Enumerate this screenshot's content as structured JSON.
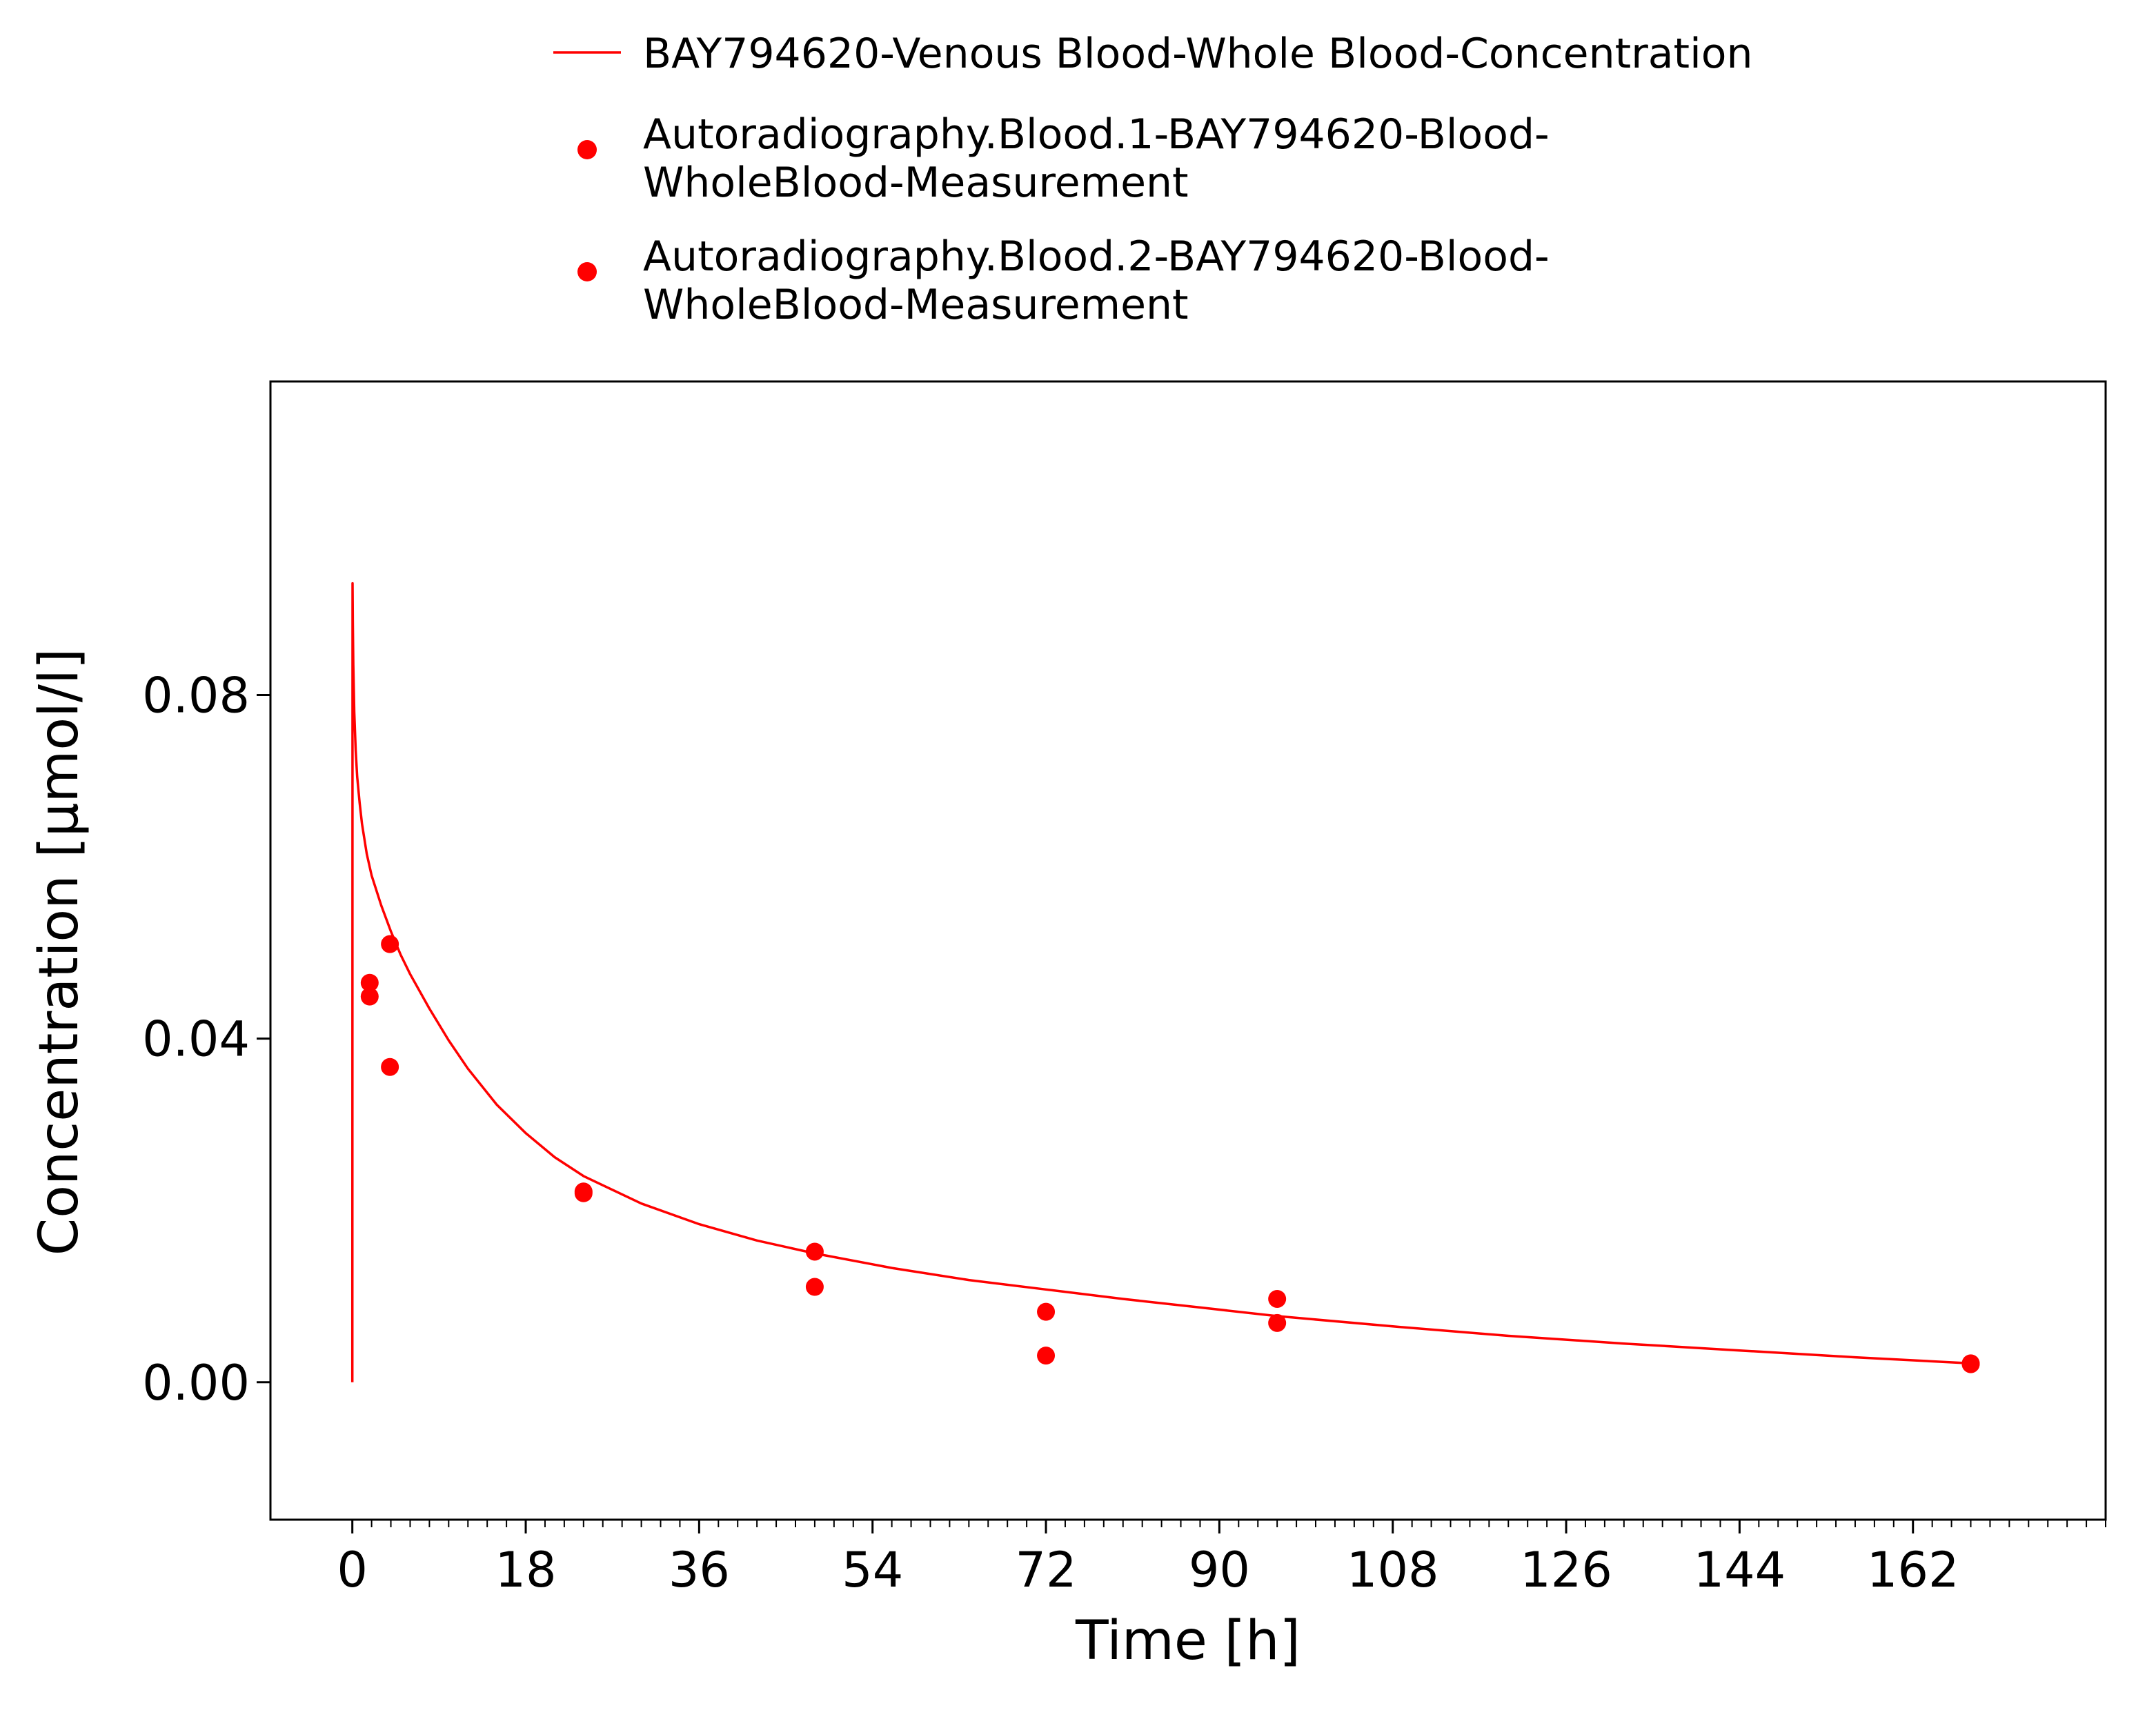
{
  "chart_data": {
    "type": "line",
    "title": "",
    "xlabel": "Time [h]",
    "ylabel": "Concentration [µmol/l]",
    "xlim": [
      -8.5,
      182
    ],
    "ylim": [
      -0.016,
      0.1165
    ],
    "x_ticks": [
      0,
      18,
      36,
      54,
      72,
      90,
      108,
      126,
      144,
      162
    ],
    "x_tick_labels": [
      "0",
      "18",
      "36",
      "54",
      "72",
      "90",
      "108",
      "126",
      "144",
      "162"
    ],
    "x_minor_step": 2,
    "y_ticks": [
      0.0,
      0.04,
      0.08
    ],
    "y_tick_labels": [
      "0.00",
      "0.04",
      "0.08"
    ],
    "grid": false,
    "legend_position": "top",
    "color": "#ff0000",
    "series": [
      {
        "name": "BAY794620-Venous Blood-Whole Blood-Concentration",
        "kind": "line",
        "x": [
          0,
          0.02,
          0.05,
          0.1,
          0.2,
          0.35,
          0.5,
          0.75,
          1,
          1.5,
          2,
          3,
          4,
          5,
          6,
          8,
          10,
          12,
          15,
          18,
          21,
          24,
          30,
          36,
          42,
          48,
          56,
          64,
          72,
          80,
          88,
          96,
          108,
          120,
          132,
          144,
          156,
          168
        ],
        "y": [
          0.0,
          0.093,
          0.0885,
          0.0835,
          0.078,
          0.0735,
          0.0705,
          0.0675,
          0.065,
          0.0615,
          0.059,
          0.0555,
          0.0525,
          0.0498,
          0.0475,
          0.0435,
          0.0398,
          0.0365,
          0.0323,
          0.029,
          0.0262,
          0.024,
          0.0208,
          0.0184,
          0.0165,
          0.015,
          0.0133,
          0.0119,
          0.0108,
          0.0097,
          0.0087,
          0.0077,
          0.0065,
          0.0054,
          0.0045,
          0.0037,
          0.0029,
          0.0022
        ]
      },
      {
        "name": "Autoradiography.Blood.1-BAY794620-Blood-WholeBlood-Measurement",
        "kind": "scatter",
        "x": [
          1.8,
          3.9,
          24,
          48,
          72,
          96,
          168
        ],
        "y": [
          0.0465,
          0.051,
          0.0222,
          0.0152,
          0.0082,
          0.0097,
          0.0022
        ]
      },
      {
        "name": "Autoradiography.Blood.2-BAY794620-Blood-WholeBlood-Measurement",
        "kind": "scatter",
        "x": [
          1.8,
          3.9,
          24,
          48,
          72,
          96,
          168
        ],
        "y": [
          0.0449,
          0.0367,
          0.022,
          0.0111,
          0.0031,
          0.0069,
          0.0021
        ]
      }
    ],
    "legend": [
      {
        "label_lines": [
          "BAY794620-Venous Blood-Whole Blood-Concentration"
        ],
        "marker": "line"
      },
      {
        "label_lines": [
          "Autoradiography.Blood.1-BAY794620-Blood-",
          "WholeBlood-Measurement"
        ],
        "marker": "dot"
      },
      {
        "label_lines": [
          "Autoradiography.Blood.2-BAY794620-Blood-",
          "WholeBlood-Measurement"
        ],
        "marker": "dot"
      }
    ]
  }
}
